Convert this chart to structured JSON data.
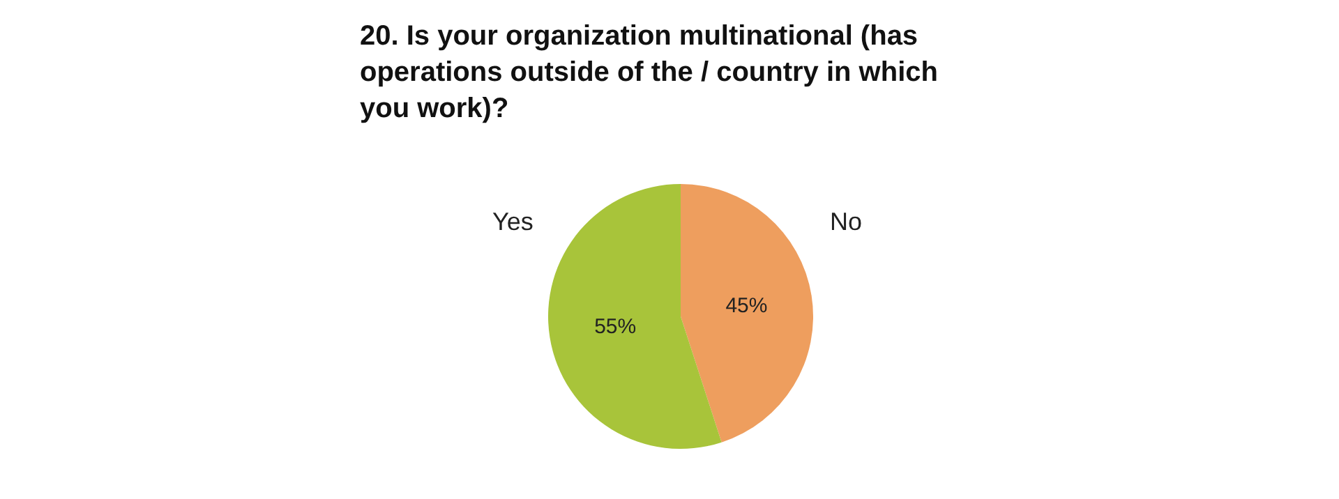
{
  "chart_data": {
    "type": "pie",
    "title": "20. Is your organization multinational (has operations outside of the / country in which you work)?",
    "categories": [
      "No",
      "Yes"
    ],
    "values": [
      45,
      55
    ],
    "colors": [
      "#ee9e5e",
      "#a8c43a"
    ],
    "value_labels": [
      "45%",
      "55%"
    ],
    "legend": false
  }
}
